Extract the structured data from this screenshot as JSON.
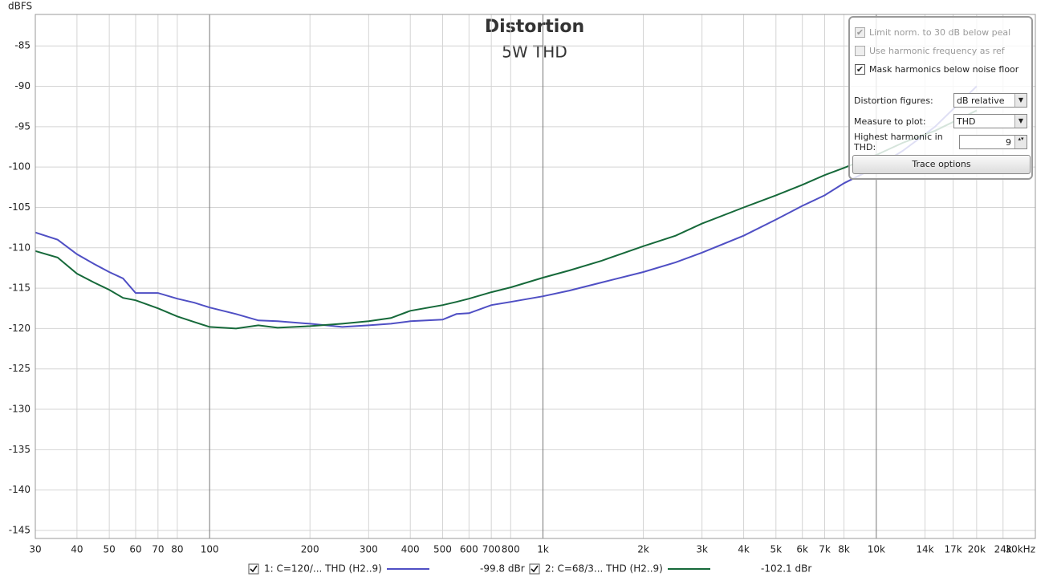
{
  "chart_data": {
    "type": "line",
    "title": "Distortion",
    "subtitle": "5W THD",
    "y_label": "dBFS",
    "log_x": true,
    "grid": true,
    "x": [
      30,
      35,
      40,
      45,
      50,
      55,
      60,
      70,
      80,
      90,
      100,
      120,
      140,
      160,
      200,
      250,
      300,
      350,
      400,
      500,
      550,
      600,
      700,
      800,
      1000,
      1200,
      1500,
      2000,
      2500,
      3000,
      4000,
      5000,
      6000,
      7000,
      8000,
      10000,
      12000,
      15000,
      20000
    ],
    "series": [
      {
        "name": "1: C=120/... THD (H2..9)",
        "color": "#4f4fc4",
        "readout": "-99.8 dBr",
        "checked": true,
        "values": [
          -108.1,
          -109,
          -110.8,
          -112,
          -113,
          -113.8,
          -115.6,
          -115.6,
          -116.3,
          -116.8,
          -117.4,
          -118.2,
          -119,
          -119.1,
          -119.4,
          -119.8,
          -119.6,
          -119.4,
          -119.1,
          -118.9,
          -118.2,
          -118.1,
          -117.1,
          -116.7,
          -116,
          -115.3,
          -114.3,
          -113,
          -111.8,
          -110.6,
          -108.5,
          -106.5,
          -104.8,
          -103.5,
          -102,
          -100,
          -98,
          -95,
          -90
        ]
      },
      {
        "name": "2: C=68/3... THD (H2..9)",
        "color": "#16693a",
        "readout": "-102.1 dBr",
        "checked": true,
        "values": [
          -110.4,
          -111.2,
          -113.2,
          -114.3,
          -115.2,
          -116.2,
          -116.5,
          -117.5,
          -118.5,
          -119.2,
          -119.8,
          -120,
          -119.6,
          -119.9,
          -119.7,
          -119.4,
          -119.1,
          -118.7,
          -117.8,
          -117.1,
          -116.7,
          -116.3,
          -115.5,
          -114.9,
          -113.7,
          -112.8,
          -111.6,
          -109.8,
          -108.5,
          -107,
          -105,
          -103.5,
          -102.2,
          -101,
          -100.1,
          -98.5,
          -97,
          -95.5,
          -93
        ]
      }
    ],
    "xlim": [
      30,
      30000
    ],
    "ylim": [
      -146,
      -81.1
    ],
    "xticks": [
      30,
      40,
      50,
      60,
      70,
      80,
      100,
      200,
      300,
      400,
      500,
      600,
      700,
      800,
      {
        "value": 1000,
        "label": "1k"
      },
      {
        "value": 2000,
        "label": "2k"
      },
      {
        "value": 3000,
        "label": "3k"
      },
      {
        "value": 4000,
        "label": "4k"
      },
      {
        "value": 5000,
        "label": "5k"
      },
      {
        "value": 6000,
        "label": "6k"
      },
      {
        "value": 7000,
        "label": "7k"
      },
      {
        "value": 8000,
        "label": "8k"
      },
      {
        "value": 10000,
        "label": "10k"
      },
      {
        "value": 14000,
        "label": "14k"
      },
      {
        "value": 17000,
        "label": "17k"
      },
      {
        "value": 20000,
        "label": "20k"
      },
      {
        "value": 24000,
        "label": "24k"
      },
      {
        "value": 30000,
        "label": "30kHz"
      }
    ],
    "yticks": [
      -85,
      -90,
      -95,
      -100,
      -105,
      -110,
      -115,
      -120,
      -125,
      -130,
      -135,
      -140,
      -145
    ]
  },
  "panel": {
    "checkboxes": [
      {
        "label": "Limit norm. to 30 dB below peal",
        "checked": true,
        "enabled": false
      },
      {
        "label": "Use harmonic frequency as ref",
        "checked": false,
        "enabled": false
      },
      {
        "label": "Mask harmonics below noise floor",
        "checked": true,
        "enabled": true
      }
    ],
    "fields": [
      {
        "label": "Distortion figures:",
        "value": "dB relative"
      },
      {
        "label": "Measure to plot:",
        "value": "THD"
      },
      {
        "label": "Highest harmonic in THD:",
        "value": "9"
      }
    ],
    "button": "Trace options"
  }
}
